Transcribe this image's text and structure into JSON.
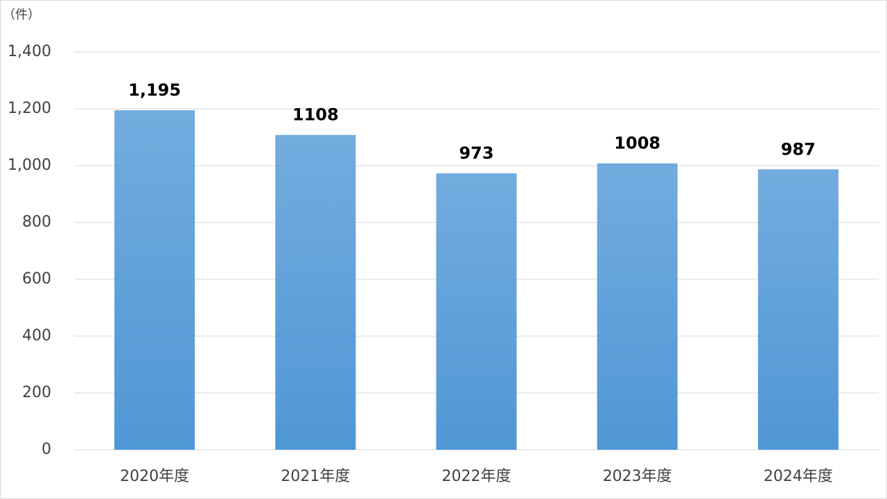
{
  "chart_data": {
    "type": "bar",
    "y_label": "（件）",
    "categories": [
      "2020年度",
      "2021年度",
      "2022年度",
      "2023年度",
      "2024年度"
    ],
    "values": [
      1195,
      1108,
      973,
      1008,
      987
    ],
    "value_labels": [
      "1,195",
      "1108",
      "973",
      "1008",
      "987"
    ],
    "color": "#5097d6",
    "ylim": [
      0,
      1400
    ],
    "yticks": [
      0,
      200,
      400,
      600,
      800,
      {
        "value": 1000,
        "label": "1,000"
      },
      {
        "value": 1200,
        "label": "1,200"
      },
      {
        "value": 1400,
        "label": "1,400"
      }
    ],
    "grid": true
  }
}
